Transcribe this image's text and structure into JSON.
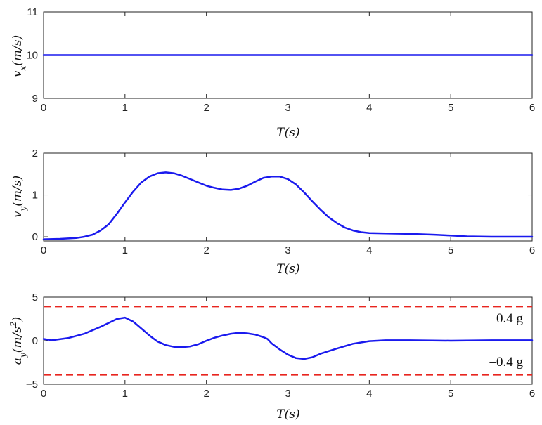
{
  "colors": {
    "series": "#1a1aee",
    "limit": "#e8251f",
    "axis": "#222222",
    "background": "#ffffff"
  },
  "chart_data": [
    {
      "type": "line",
      "xlabel": "T(s)",
      "ylabel": "v_x(m/s)",
      "xlim": [
        0,
        6
      ],
      "ylim": [
        9,
        11
      ],
      "xticks": [
        "0",
        "1",
        "2",
        "3",
        "4",
        "5",
        "6"
      ],
      "yticks": [
        "9",
        "10",
        "11"
      ],
      "grid": false,
      "series": [
        {
          "x": [
            0,
            6
          ],
          "y": [
            10,
            10
          ]
        }
      ]
    },
    {
      "type": "line",
      "xlabel": "T(s)",
      "ylabel": "v_y(m/s)",
      "xlim": [
        0,
        6
      ],
      "ylim": [
        -0.1,
        2
      ],
      "xticks": [
        "0",
        "1",
        "2",
        "3",
        "4",
        "5",
        "6"
      ],
      "yticks": [
        "0",
        "1",
        "2"
      ],
      "grid": false,
      "series": [
        {
          "x": [
            0,
            0.2,
            0.4,
            0.5,
            0.6,
            0.7,
            0.8,
            0.9,
            1.0,
            1.1,
            1.2,
            1.3,
            1.4,
            1.5,
            1.6,
            1.7,
            1.8,
            1.9,
            2.0,
            2.1,
            2.2,
            2.3,
            2.4,
            2.5,
            2.6,
            2.7,
            2.8,
            2.9,
            3.0,
            3.1,
            3.2,
            3.3,
            3.4,
            3.5,
            3.6,
            3.7,
            3.8,
            3.9,
            4.0,
            4.2,
            4.5,
            4.8,
            5.0,
            5.2,
            5.5,
            6.0
          ],
          "y": [
            -0.06,
            -0.05,
            -0.03,
            0.0,
            0.05,
            0.15,
            0.3,
            0.55,
            0.82,
            1.08,
            1.3,
            1.44,
            1.52,
            1.54,
            1.52,
            1.46,
            1.38,
            1.3,
            1.22,
            1.17,
            1.13,
            1.12,
            1.15,
            1.22,
            1.32,
            1.41,
            1.44,
            1.44,
            1.38,
            1.25,
            1.06,
            0.85,
            0.65,
            0.47,
            0.33,
            0.22,
            0.15,
            0.11,
            0.09,
            0.08,
            0.07,
            0.05,
            0.03,
            0.01,
            0.0,
            0.0
          ]
        }
      ]
    },
    {
      "type": "line",
      "xlabel": "T(s)",
      "ylabel": "a_y(m/s^2)",
      "xlim": [
        0,
        6
      ],
      "ylim": [
        -5,
        5
      ],
      "xticks": [
        "0",
        "1",
        "2",
        "3",
        "4",
        "5",
        "6"
      ],
      "yticks": [
        "-5",
        "0",
        "5"
      ],
      "grid": false,
      "annotations": [
        "0.4 g",
        "–0.4 g"
      ],
      "limit_lines": [
        3.92,
        -3.92
      ],
      "series": [
        {
          "x": [
            0,
            0.1,
            0.3,
            0.5,
            0.7,
            0.9,
            1.0,
            1.1,
            1.2,
            1.3,
            1.4,
            1.5,
            1.6,
            1.7,
            1.8,
            1.9,
            2.0,
            2.1,
            2.2,
            2.3,
            2.4,
            2.5,
            2.6,
            2.7,
            2.75,
            2.8,
            2.9,
            3.0,
            3.1,
            3.2,
            3.3,
            3.4,
            3.6,
            3.8,
            4.0,
            4.2,
            4.5,
            5.0,
            5.5,
            6.0
          ],
          "y": [
            0.2,
            0.05,
            0.3,
            0.8,
            1.6,
            2.5,
            2.65,
            2.2,
            1.4,
            0.6,
            -0.1,
            -0.5,
            -0.7,
            -0.75,
            -0.65,
            -0.4,
            0.0,
            0.35,
            0.6,
            0.8,
            0.9,
            0.85,
            0.7,
            0.4,
            0.2,
            -0.3,
            -1.0,
            -1.6,
            -2.0,
            -2.1,
            -1.9,
            -1.5,
            -0.9,
            -0.35,
            -0.05,
            0.05,
            0.05,
            0.0,
            0.05,
            0.05
          ]
        }
      ]
    }
  ]
}
